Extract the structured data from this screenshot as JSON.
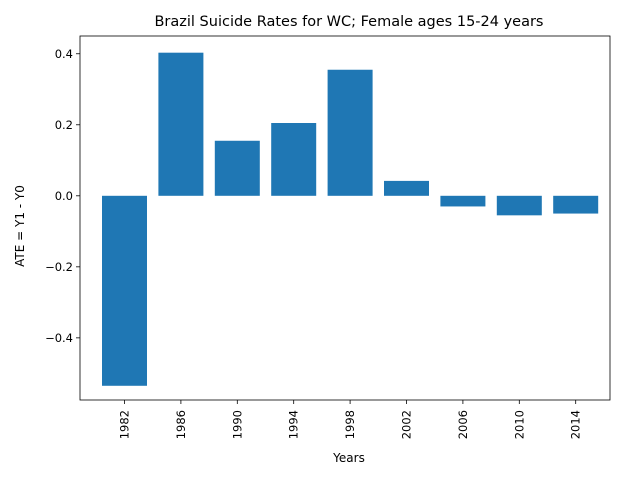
{
  "chart_data": {
    "type": "bar",
    "title": "Brazil Suicide Rates for WC; Female ages 15-24 years",
    "xlabel": "Years",
    "ylabel": "ATE = Y1 - Y0",
    "categories": [
      "1982",
      "1986",
      "1990",
      "1994",
      "1998",
      "2002",
      "2006",
      "2010",
      "2014"
    ],
    "values": [
      -0.535,
      0.403,
      0.155,
      0.205,
      0.355,
      0.042,
      -0.03,
      -0.055,
      -0.05
    ],
    "ylim": [
      -0.575,
      0.45
    ],
    "yticks": [
      -0.4,
      -0.2,
      0.0,
      0.2,
      0.4
    ],
    "ytick_labels": [
      "−0.4",
      "−0.2",
      "0.0",
      "0.2",
      "0.4"
    ],
    "grid": false,
    "bar_color": "#1f77b4"
  }
}
